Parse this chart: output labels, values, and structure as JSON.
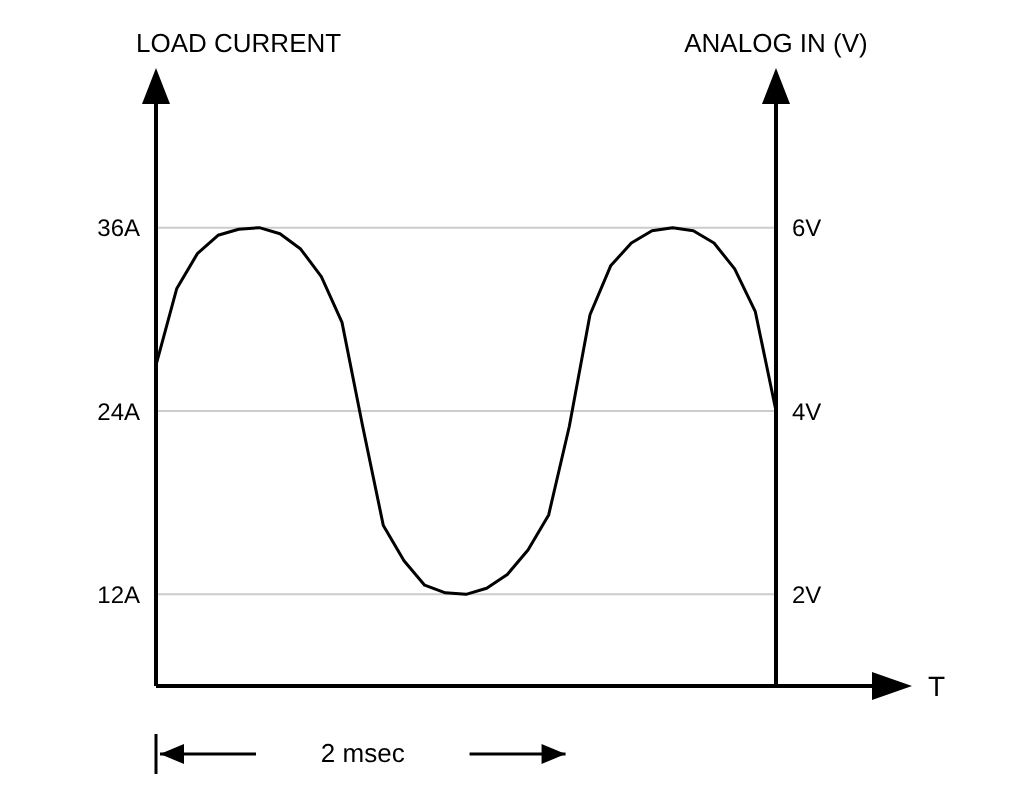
{
  "chart_data": {
    "type": "line",
    "xlabel": "T",
    "ylabel": "LOAD CURRENT",
    "y2label": "ANALOG IN (V)",
    "categories": [
      null,
      null,
      null,
      null,
      null,
      null,
      null,
      null,
      null,
      null,
      null,
      null,
      null,
      null,
      null,
      null,
      null,
      null,
      null,
      null,
      null,
      null,
      null,
      null,
      null,
      null,
      null,
      null,
      null,
      null,
      null
    ],
    "series": [
      {
        "color": "#000000",
        "values": [
          27,
          32,
          34.3,
          35.5,
          35.9,
          36,
          35.6,
          34.6,
          32.8,
          29.8,
          23,
          16.5,
          14.2,
          12.6,
          12.1,
          12,
          12.4,
          13.3,
          14.9,
          17.2,
          23,
          30.3,
          33.5,
          35,
          35.8,
          36,
          35.8,
          35,
          33.3,
          30.5,
          24
        ]
      }
    ],
    "ylim": [
      6,
      42
    ],
    "yticks": [
      {
        "value": 12,
        "label": "12A"
      },
      {
        "value": 24,
        "label": "24A"
      },
      {
        "value": 36,
        "label": "36A"
      }
    ],
    "y2lim": [
      1,
      7
    ],
    "y2ticks": [
      {
        "value": 2,
        "label": "2V"
      },
      {
        "value": 4,
        "label": "4V"
      },
      {
        "value": 6,
        "label": "6V"
      }
    ],
    "grid": "y",
    "marker": "none",
    "line_style": "solid",
    "annotations": [
      "2 msec"
    ]
  }
}
